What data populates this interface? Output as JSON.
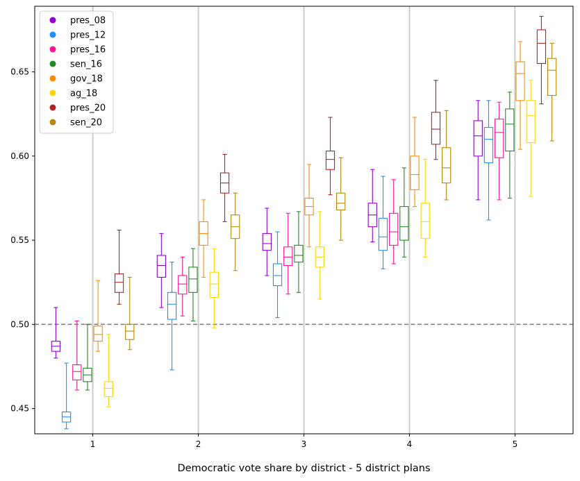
{
  "chart_data": {
    "type": "box",
    "title": "",
    "xlabel": "Democratic vote share by district - 5 district plans",
    "ylabel": "",
    "ylim": [
      0.435,
      0.689
    ],
    "xlim": [
      0.45,
      5.55
    ],
    "xticks": [
      1,
      2,
      3,
      4,
      5
    ],
    "yticks": [
      0.45,
      0.5,
      0.55,
      0.6,
      0.65
    ],
    "ytick_labels": [
      "0.45",
      "0.50",
      "0.55",
      "0.60",
      "0.65"
    ],
    "reference_line": 0.5,
    "legend_position": "top-left",
    "grid": "vertical lines at districts",
    "series": [
      {
        "name": "pres_08",
        "color": "#9400D3",
        "boxes": [
          {
            "district": 1,
            "whislo": 0.48,
            "q1": 0.484,
            "med": 0.487,
            "q3": 0.49,
            "whishi": 0.51
          },
          {
            "district": 2,
            "whislo": 0.51,
            "q1": 0.528,
            "med": 0.535,
            "q3": 0.541,
            "whishi": 0.554
          },
          {
            "district": 3,
            "whislo": 0.529,
            "q1": 0.544,
            "med": 0.548,
            "q3": 0.554,
            "whishi": 0.569
          },
          {
            "district": 4,
            "whislo": 0.549,
            "q1": 0.558,
            "med": 0.565,
            "q3": 0.572,
            "whishi": 0.592
          },
          {
            "district": 5,
            "whislo": 0.574,
            "q1": 0.6,
            "med": 0.612,
            "q3": 0.621,
            "whishi": 0.633
          }
        ]
      },
      {
        "name": "pres_12",
        "color": "#1E90FF",
        "boxes": [
          {
            "district": 1,
            "whislo": 0.438,
            "q1": 0.442,
            "med": 0.445,
            "q3": 0.448,
            "whishi": 0.477
          },
          {
            "district": 2,
            "whislo": 0.473,
            "q1": 0.503,
            "med": 0.512,
            "q3": 0.519,
            "whishi": 0.537
          },
          {
            "district": 3,
            "whislo": 0.504,
            "q1": 0.523,
            "med": 0.529,
            "q3": 0.536,
            "whishi": 0.555
          },
          {
            "district": 4,
            "whislo": 0.533,
            "q1": 0.544,
            "med": 0.552,
            "q3": 0.563,
            "whishi": 0.588
          },
          {
            "district": 5,
            "whislo": 0.562,
            "q1": 0.596,
            "med": 0.61,
            "q3": 0.617,
            "whishi": 0.633
          }
        ]
      },
      {
        "name": "pres_16",
        "color": "#FF1493",
        "boxes": [
          {
            "district": 1,
            "whislo": 0.461,
            "q1": 0.467,
            "med": 0.472,
            "q3": 0.476,
            "whishi": 0.502
          },
          {
            "district": 2,
            "whislo": 0.505,
            "q1": 0.518,
            "med": 0.524,
            "q3": 0.529,
            "whishi": 0.54
          },
          {
            "district": 3,
            "whislo": 0.518,
            "q1": 0.535,
            "med": 0.54,
            "q3": 0.546,
            "whishi": 0.566
          },
          {
            "district": 4,
            "whislo": 0.536,
            "q1": 0.547,
            "med": 0.555,
            "q3": 0.566,
            "whishi": 0.586
          },
          {
            "district": 5,
            "whislo": 0.574,
            "q1": 0.599,
            "med": 0.614,
            "q3": 0.622,
            "whishi": 0.632
          }
        ]
      },
      {
        "name": "sen_16",
        "color": "#228B22",
        "boxes": [
          {
            "district": 1,
            "whislo": 0.461,
            "q1": 0.466,
            "med": 0.47,
            "q3": 0.474,
            "whishi": 0.5
          },
          {
            "district": 2,
            "whislo": 0.502,
            "q1": 0.519,
            "med": 0.527,
            "q3": 0.534,
            "whishi": 0.545
          },
          {
            "district": 3,
            "whislo": 0.519,
            "q1": 0.537,
            "med": 0.541,
            "q3": 0.547,
            "whishi": 0.567
          },
          {
            "district": 4,
            "whislo": 0.54,
            "q1": 0.55,
            "med": 0.558,
            "q3": 0.57,
            "whishi": 0.593
          },
          {
            "district": 5,
            "whislo": 0.575,
            "q1": 0.603,
            "med": 0.619,
            "q3": 0.628,
            "whishi": 0.638
          }
        ]
      },
      {
        "name": "gov_18",
        "color": "#FF8C00",
        "boxes": [
          {
            "district": 1,
            "whislo": 0.484,
            "q1": 0.49,
            "med": 0.494,
            "q3": 0.499,
            "whishi": 0.526
          },
          {
            "district": 2,
            "whislo": 0.528,
            "q1": 0.547,
            "med": 0.554,
            "q3": 0.561,
            "whishi": 0.574
          },
          {
            "district": 3,
            "whislo": 0.546,
            "q1": 0.565,
            "med": 0.57,
            "q3": 0.575,
            "whishi": 0.595
          },
          {
            "district": 4,
            "whislo": 0.57,
            "q1": 0.58,
            "med": 0.589,
            "q3": 0.6,
            "whishi": 0.623
          },
          {
            "district": 5,
            "whislo": 0.604,
            "q1": 0.633,
            "med": 0.649,
            "q3": 0.656,
            "whishi": 0.668
          }
        ]
      },
      {
        "name": "ag_18",
        "color": "#FFD700",
        "boxes": [
          {
            "district": 1,
            "whislo": 0.451,
            "q1": 0.457,
            "med": 0.462,
            "q3": 0.466,
            "whishi": 0.494
          },
          {
            "district": 2,
            "whislo": 0.498,
            "q1": 0.516,
            "med": 0.524,
            "q3": 0.531,
            "whishi": 0.545
          },
          {
            "district": 3,
            "whislo": 0.515,
            "q1": 0.534,
            "med": 0.54,
            "q3": 0.546,
            "whishi": 0.567
          },
          {
            "district": 4,
            "whislo": 0.54,
            "q1": 0.551,
            "med": 0.561,
            "q3": 0.572,
            "whishi": 0.598
          },
          {
            "district": 5,
            "whislo": 0.576,
            "q1": 0.608,
            "med": 0.624,
            "q3": 0.633,
            "whishi": 0.645
          }
        ]
      },
      {
        "name": "pres_20",
        "color": "#B22222",
        "boxes": [
          {
            "district": 1,
            "whislo": 0.512,
            "q1": 0.519,
            "med": 0.525,
            "q3": 0.53,
            "whishi": 0.556
          },
          {
            "district": 2,
            "whislo": 0.561,
            "q1": 0.578,
            "med": 0.584,
            "q3": 0.59,
            "whishi": 0.601
          },
          {
            "district": 3,
            "whislo": 0.577,
            "q1": 0.592,
            "med": 0.598,
            "q3": 0.603,
            "whishi": 0.623
          },
          {
            "district": 4,
            "whislo": 0.598,
            "q1": 0.607,
            "med": 0.616,
            "q3": 0.626,
            "whishi": 0.645
          },
          {
            "district": 5,
            "whislo": 0.631,
            "q1": 0.655,
            "med": 0.667,
            "q3": 0.675,
            "whishi": 0.683
          }
        ]
      },
      {
        "name": "sen_20",
        "color": "#B8860B",
        "boxes": [
          {
            "district": 1,
            "whislo": 0.485,
            "q1": 0.491,
            "med": 0.496,
            "q3": 0.5,
            "whishi": 0.528
          },
          {
            "district": 2,
            "whislo": 0.532,
            "q1": 0.551,
            "med": 0.558,
            "q3": 0.565,
            "whishi": 0.578
          },
          {
            "district": 3,
            "whislo": 0.55,
            "q1": 0.568,
            "med": 0.572,
            "q3": 0.578,
            "whishi": 0.599
          },
          {
            "district": 4,
            "whislo": 0.574,
            "q1": 0.584,
            "med": 0.593,
            "q3": 0.605,
            "whishi": 0.627
          },
          {
            "district": 5,
            "whislo": 0.609,
            "q1": 0.636,
            "med": 0.651,
            "q3": 0.658,
            "whishi": 0.667
          }
        ]
      }
    ]
  }
}
